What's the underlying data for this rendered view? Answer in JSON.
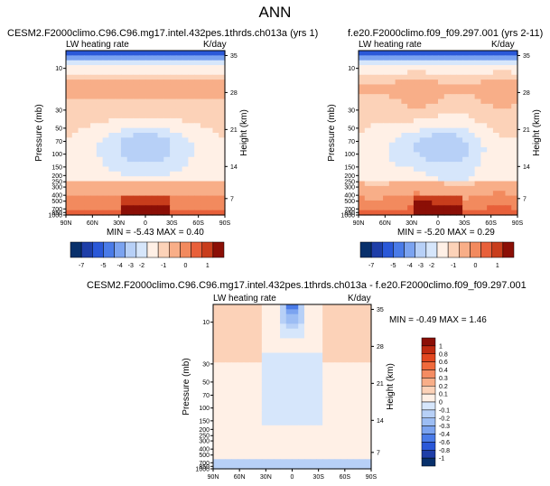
{
  "page": {
    "title": "ANN"
  },
  "chart_data": [
    {
      "type": "heatmap",
      "title": "CESM2.F2000climo.C96.C96.mg17.intel.432pes.1thrds.ch013a (yrs 1)",
      "field_label": "LW heating rate",
      "units": "K/day",
      "ylabel": "Pressure (mb)",
      "ylabel_right": "Height (km)",
      "x_ticks": [
        "90N",
        "60N",
        "30N",
        "0",
        "30S",
        "60S",
        "90S"
      ],
      "y_ticks": [
        "10",
        "30",
        "50",
        "70",
        "100",
        "150",
        "200",
        "250",
        "300",
        "400",
        "500",
        "700",
        "850",
        "1000"
      ],
      "y_ticks_right": [
        "35",
        "28",
        "21",
        "14",
        "7"
      ],
      "stats": "MIN = -5.43   MAX =  0.40",
      "min": -5.43,
      "max": 0.4,
      "colorbar_ticks": [
        "-7",
        "-5",
        "-4",
        "-3",
        "-2",
        "-1",
        "0",
        "1"
      ]
    },
    {
      "type": "heatmap",
      "title": "f.e20.F2000climo.f09_f09.297.001 (yrs 2-11)",
      "field_label": "LW heating rate",
      "units": "K/day",
      "ylabel": "Pressure (mb)",
      "ylabel_right": "Height (km)",
      "x_ticks": [
        "90N",
        "60N",
        "30N",
        "0",
        "30S",
        "60S",
        "90S"
      ],
      "y_ticks": [
        "10",
        "30",
        "50",
        "70",
        "100",
        "150",
        "200",
        "250",
        "300",
        "400",
        "500",
        "700",
        "850",
        "1000"
      ],
      "y_ticks_right": [
        "35",
        "28",
        "21",
        "14",
        "7"
      ],
      "stats": "MIN = -5.20   MAX =  0.29",
      "min": -5.2,
      "max": 0.29,
      "colorbar_ticks": [
        "-7",
        "-5",
        "-4",
        "-3",
        "-2",
        "-1",
        "0",
        "1"
      ]
    },
    {
      "type": "heatmap",
      "title": "CESM2.F2000climo.C96.C96.mg17.intel.432pes.1thrds.ch013a - f.e20.F2000climo.f09_f09.297.001",
      "field_label": "LW heating rate",
      "units": "K/day",
      "ylabel": "Pressure (mb)",
      "ylabel_right": "Height (km)",
      "x_ticks": [
        "90N",
        "60N",
        "30N",
        "0",
        "30S",
        "60S",
        "90S"
      ],
      "y_ticks": [
        "10",
        "30",
        "50",
        "70",
        "100",
        "150",
        "200",
        "250",
        "300",
        "400",
        "500",
        "700",
        "850",
        "1000"
      ],
      "y_ticks_right": [
        "35",
        "28",
        "21",
        "14",
        "7"
      ],
      "stats": "MIN = -0.49   MAX =  1.46",
      "min": -0.49,
      "max": 1.46,
      "colorbar_ticks": [
        "1",
        "0.8",
        "0.6",
        "0.4",
        "0.3",
        "0.2",
        "0.1",
        "0",
        "-0.1",
        "-0.2",
        "-0.3",
        "-0.4",
        "-0.6",
        "-0.8",
        "-1"
      ]
    }
  ],
  "colors": {
    "abs_scale": [
      "#08306b",
      "#1e3ea8",
      "#2a58d8",
      "#4a7be8",
      "#7ba3f0",
      "#b7d0f7",
      "#d6e6fb",
      "#fff0e6",
      "#fcd2b8",
      "#f8ae88",
      "#f28a5e",
      "#e8603a",
      "#c83d1c",
      "#8b0f06"
    ],
    "diff_scale": [
      "#8b0f06",
      "#bf2a10",
      "#e2471f",
      "#f06a3c",
      "#f48c62",
      "#f8ae88",
      "#fcd2b8",
      "#fff0e6",
      "#d6e6fb",
      "#b7d0f7",
      "#9cbdf4",
      "#7ba3f0",
      "#4a7be8",
      "#2a58d8",
      "#1e3ea8",
      "#08306b"
    ]
  }
}
